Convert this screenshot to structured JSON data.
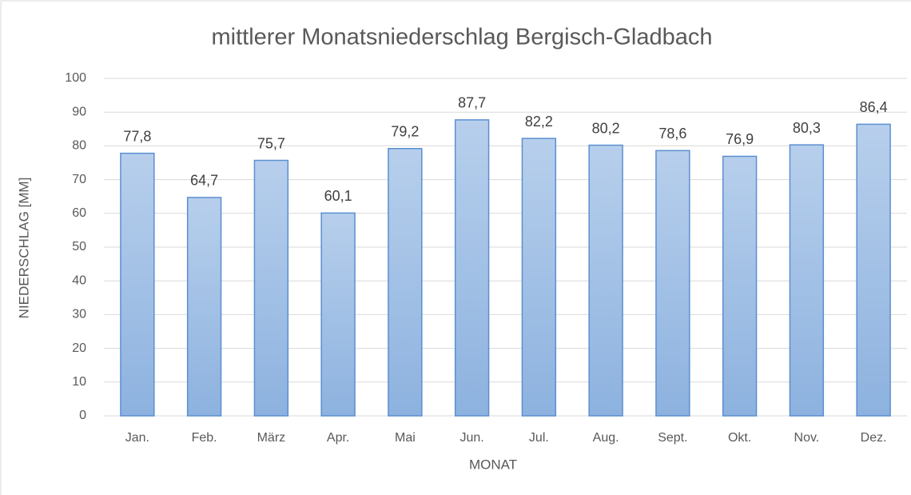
{
  "chart_data": {
    "type": "bar",
    "title": "mittlerer Monatsniederschlag  Bergisch-Gladbach",
    "x_label": "MONAT",
    "y_label": "NIEDERSCHLAG [MM]",
    "categories": [
      "Jan.",
      "Feb.",
      "März",
      "Apr.",
      "Mai",
      "Jun.",
      "Jul.",
      "Aug.",
      "Sept.",
      "Okt.",
      "Nov.",
      "Dez."
    ],
    "values": [
      77.8,
      64.7,
      75.7,
      60.1,
      79.2,
      87.7,
      82.2,
      80.2,
      78.6,
      76.9,
      80.3,
      86.4
    ],
    "value_labels": [
      "77,8",
      "64,7",
      "75,7",
      "60,1",
      "79,2",
      "87,7",
      "82,2",
      "80,2",
      "78,6",
      "76,9",
      "80,3",
      "86,4"
    ],
    "color": "#9dc0e8",
    "ylim": [
      0,
      100
    ],
    "yticks": [
      0,
      10,
      20,
      30,
      40,
      50,
      60,
      70,
      80,
      90,
      100
    ],
    "grid": true
  }
}
